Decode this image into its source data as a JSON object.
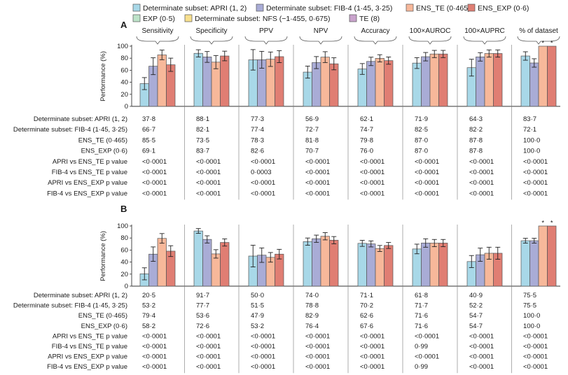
{
  "chart_data": {
    "type": "bar",
    "legend": [
      {
        "name": "Determinate subset: APRI (1, 2)",
        "color": "#a8d8e8"
      },
      {
        "name": "Determinate subset: FIB-4 (1·45, 3·25)",
        "color": "#a9acd6"
      },
      {
        "name": "ENS_TE (0·465)",
        "color": "#f7b89a"
      },
      {
        "name": "ENS_EXP (0·6)",
        "color": "#e07e73"
      },
      {
        "name": "EXP (0·5)",
        "color": "#bde3c9"
      },
      {
        "name": "Determinate subset: NFS (−1·455, 0·675)",
        "color": "#f8e08e"
      },
      {
        "name": "TE (8)",
        "color": "#c9a3cc"
      }
    ],
    "categories": [
      "Sensitivity",
      "Specificity",
      "PPV",
      "NPV",
      "Accuracy",
      "100×AUROC",
      "100×AUPRC",
      "% of dataset"
    ],
    "ylabel": "Performance (%)",
    "ylim": [
      0,
      100
    ],
    "yticks": [
      "0",
      "20",
      "40",
      "60",
      "80",
      "100"
    ],
    "panels": [
      {
        "label": "A",
        "series": [
          {
            "name": "Determinate subset: APRI (1, 2)",
            "values": [
              37.8,
              88.1,
              77.3,
              56.9,
              62.1,
              71.9,
              64.3,
              83.7
            ],
            "err": [
              10,
              6,
              17,
              10,
              9,
              9,
              14,
              7
            ]
          },
          {
            "name": "Determinate subset: FIB-4 (1·45, 3·25)",
            "values": [
              66.7,
              82.1,
              77.4,
              72.7,
              74.7,
              82.5,
              82.2,
              72.1
            ],
            "err": [
              14,
              9,
              14,
              10,
              7,
              7,
              7,
              7
            ]
          },
          {
            "name": "ENS_TE (0·465)",
            "values": [
              85.5,
              73.5,
              78.3,
              81.8,
              79.8,
              87.0,
              87.8,
              100.0
            ],
            "err": [
              8,
              11,
              12,
              9,
              6,
              6,
              6,
              0
            ]
          },
          {
            "name": "ENS_EXP (0·6)",
            "values": [
              69.1,
              83.7,
              82.6,
              70.7,
              76.0,
              87.0,
              87.8,
              100.0
            ],
            "err": [
              11,
              8,
              10,
              10,
              6,
              6,
              6,
              0
            ]
          }
        ],
        "stars": [
          "*",
          "*"
        ],
        "table": {
          "rows": [
            {
              "label": "Determinate subset: APRI (1, 2)",
              "cells": [
                "37·8",
                "88·1",
                "77·3",
                "56·9",
                "62·1",
                "71·9",
                "64·3",
                "83·7"
              ]
            },
            {
              "label": "Determinate subset: FIB-4 (1·45, 3·25)",
              "cells": [
                "66·7",
                "82·1",
                "77·4",
                "72·7",
                "74·7",
                "82·5",
                "82·2",
                "72·1"
              ]
            },
            {
              "label": "ENS_TE (0·465)",
              "cells": [
                "85·5",
                "73·5",
                "78·3",
                "81·8",
                "79·8",
                "87·0",
                "87·8",
                "100·0"
              ]
            },
            {
              "label": "ENS_EXP (0·6)",
              "cells": [
                "69·1",
                "83·7",
                "82·6",
                "70·7",
                "76·0",
                "87·0",
                "87·8",
                "100·0"
              ]
            },
            {
              "label": "APRI vs ENS_TE p value",
              "cells": [
                "<0·0001",
                "<0·0001",
                "<0·0001",
                "<0·0001",
                "<0·0001",
                "<0·0001",
                "<0·0001",
                "<0·0001"
              ]
            },
            {
              "label": "FIB-4 vs ENS_TE p value",
              "cells": [
                "<0·0001",
                "<0·0001",
                "0·0003",
                "<0·0001",
                "<0·0001",
                "<0·0001",
                "<0·0001",
                "<0·0001"
              ]
            },
            {
              "label": "APRI vs ENS_EXP p value",
              "cells": [
                "<0·0001",
                "<0·0001",
                "<0·0001",
                "<0·0001",
                "<0·0001",
                "<0·0001",
                "<0·0001",
                "<0·0001"
              ]
            },
            {
              "label": "FIB-4 vs ENS_EXP p value",
              "cells": [
                "<0·0001",
                "<0·0001",
                "<0·0001",
                "<0·0001",
                "<0·0001",
                "<0·0001",
                "<0·0001",
                "<0·0001"
              ]
            }
          ]
        }
      },
      {
        "label": "B",
        "series": [
          {
            "name": "Determinate subset: APRI (1, 2)",
            "values": [
              20.5,
              91.7,
              50.0,
              74.0,
              71.1,
              61.8,
              40.9,
              75.5
            ],
            "err": [
              10,
              4,
              18,
              6,
              5,
              8,
              10,
              4
            ]
          },
          {
            "name": "Determinate subset: FIB-4 (1·45, 3·25)",
            "values": [
              53.2,
              77.7,
              51.5,
              78.8,
              70.2,
              71.7,
              52.2,
              75.5
            ],
            "err": [
              12,
              6,
              12,
              6,
              5,
              7,
              11,
              4
            ]
          },
          {
            "name": "ENS_TE (0·465)",
            "values": [
              79.4,
              53.6,
              47.9,
              82.9,
              62.6,
              71.6,
              54.7,
              100.0
            ],
            "err": [
              8,
              7,
              8,
              6,
              5,
              6,
              10,
              0
            ]
          },
          {
            "name": "ENS_EXP (0·6)",
            "values": [
              58.2,
              72.6,
              53.2,
              76.4,
              67.6,
              71.6,
              54.7,
              100.0
            ],
            "err": [
              9,
              6,
              8,
              6,
              5,
              6,
              10,
              0
            ]
          }
        ],
        "stars": [
          "*",
          "*"
        ],
        "table": {
          "rows": [
            {
              "label": "Determinate subset: APRI (1, 2)",
              "cells": [
                "20·5",
                "91·7",
                "50·0",
                "74·0",
                "71·1",
                "61·8",
                "40·9",
                "75·5"
              ]
            },
            {
              "label": "Determinate subset: FIB-4 (1·45, 3·25)",
              "cells": [
                "53·2",
                "77·7",
                "51·5",
                "78·8",
                "70·2",
                "71·7",
                "52·2",
                "75·5"
              ]
            },
            {
              "label": "ENS_TE (0·465)",
              "cells": [
                "79·4",
                "53·6",
                "47·9",
                "82·9",
                "62·6",
                "71·6",
                "54·7",
                "100·0"
              ]
            },
            {
              "label": "ENS_EXP (0·6)",
              "cells": [
                "58·2",
                "72·6",
                "53·2",
                "76·4",
                "67·6",
                "71·6",
                "54·7",
                "100·0"
              ]
            },
            {
              "label": "APRI vs ENS_TE p value",
              "cells": [
                "<0·0001",
                "<0·0001",
                "<0·0001",
                "<0·0001",
                "<0·0001",
                "<0·0001",
                "<0·0001",
                "<0·0001"
              ]
            },
            {
              "label": "FIB-4 vs ENS_TE p value",
              "cells": [
                "<0·0001",
                "<0·0001",
                "<0·0001",
                "<0·0001",
                "<0·0001",
                "0·99",
                "<0·0001",
                "<0·0001"
              ]
            },
            {
              "label": "APRI vs ENS_EXP p value",
              "cells": [
                "<0·0001",
                "<0·0001",
                "<0·0001",
                "<0·0001",
                "<0·0001",
                "<0·0001",
                "<0·0001",
                "<0·0001"
              ]
            },
            {
              "label": "FIB-4 vs ENS_EXP p value",
              "cells": [
                "<0·0001",
                "<0·0001",
                "<0·0001",
                "<0·0001",
                "<0·0001",
                "0·99",
                "<0·0001",
                "<0·0001"
              ]
            }
          ]
        }
      }
    ]
  }
}
